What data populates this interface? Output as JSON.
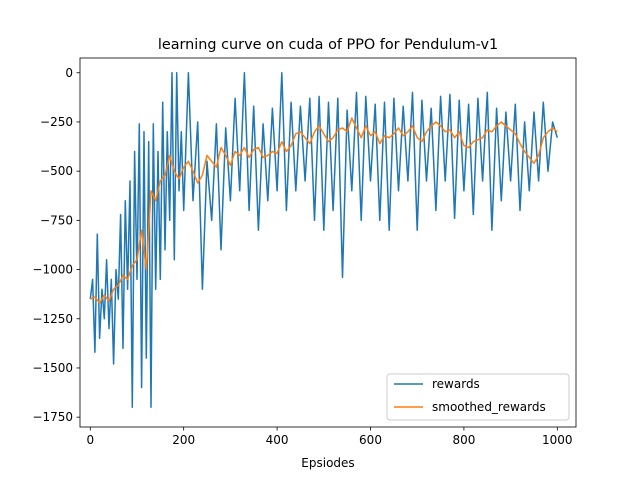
{
  "chart_data": {
    "type": "line",
    "title": "learning curve on cuda of PPO for Pendulum-v1",
    "xlabel": "Epsiodes",
    "ylabel": "",
    "xlim": [
      -22,
      1040
    ],
    "ylim": [
      -1800,
      75
    ],
    "x_ticks": [
      0,
      200,
      400,
      600,
      800,
      1000
    ],
    "y_ticks": [
      0,
      -250,
      -500,
      -750,
      -1000,
      -1250,
      -1500,
      -1750
    ],
    "grid": false,
    "legend_position": "lower right",
    "series": [
      {
        "name": "rewards",
        "color": "#1f77b4",
        "x": [
          0,
          5,
          10,
          15,
          20,
          25,
          30,
          35,
          40,
          45,
          50,
          55,
          60,
          65,
          70,
          75,
          80,
          85,
          90,
          95,
          100,
          105,
          110,
          115,
          120,
          125,
          130,
          135,
          140,
          145,
          150,
          155,
          160,
          165,
          170,
          175,
          180,
          185,
          190,
          195,
          200,
          210,
          220,
          230,
          240,
          250,
          260,
          270,
          280,
          290,
          300,
          310,
          320,
          330,
          340,
          350,
          360,
          370,
          380,
          390,
          400,
          410,
          420,
          430,
          440,
          450,
          460,
          470,
          480,
          490,
          500,
          510,
          520,
          530,
          540,
          550,
          560,
          570,
          580,
          590,
          600,
          610,
          620,
          630,
          640,
          650,
          660,
          670,
          680,
          690,
          700,
          710,
          720,
          730,
          740,
          750,
          760,
          770,
          780,
          790,
          800,
          810,
          820,
          830,
          840,
          850,
          860,
          870,
          880,
          890,
          900,
          910,
          920,
          930,
          940,
          950,
          960,
          970,
          980,
          990,
          1000
        ],
        "y": [
          -1150,
          -1050,
          -1420,
          -820,
          -1350,
          -1100,
          -1250,
          -950,
          -1300,
          -1050,
          -1480,
          -1000,
          -1150,
          -720,
          -1400,
          -650,
          -1100,
          -550,
          -1700,
          -400,
          -1050,
          -260,
          -1600,
          -300,
          -1450,
          -350,
          -1700,
          -260,
          -1100,
          -400,
          -1050,
          -150,
          -900,
          -300,
          -750,
          0,
          -950,
          0,
          -600,
          -300,
          -700,
          0,
          -650,
          -250,
          -1100,
          -450,
          -750,
          -260,
          -900,
          -280,
          -650,
          -130,
          -600,
          0,
          -700,
          -170,
          -800,
          -260,
          -650,
          -180,
          -600,
          0,
          -700,
          -150,
          -600,
          -170,
          -550,
          -130,
          -750,
          -120,
          -800,
          -150,
          -700,
          -130,
          -1040,
          -190,
          -600,
          -100,
          -750,
          -120,
          -550,
          -160,
          -750,
          -150,
          -800,
          -130,
          -600,
          -170,
          -550,
          -100,
          -800,
          -140,
          -550,
          -180,
          -700,
          -120,
          -550,
          -110,
          -740,
          -140,
          -600,
          -160,
          -720,
          -130,
          -550,
          -100,
          -800,
          -180,
          -650,
          -200,
          -550,
          -160,
          -700,
          -250,
          -600,
          -200,
          -550,
          -150,
          -500,
          -250,
          -330
        ]
      },
      {
        "name": "smoothed_rewards",
        "color": "#ff7f0e",
        "x": [
          0,
          10,
          20,
          30,
          40,
          50,
          60,
          70,
          80,
          90,
          100,
          110,
          120,
          130,
          140,
          150,
          160,
          170,
          180,
          190,
          200,
          210,
          220,
          230,
          240,
          250,
          260,
          270,
          280,
          290,
          300,
          310,
          320,
          330,
          340,
          350,
          360,
          370,
          380,
          390,
          400,
          410,
          420,
          430,
          440,
          450,
          460,
          470,
          480,
          490,
          500,
          510,
          520,
          530,
          540,
          550,
          560,
          570,
          580,
          590,
          600,
          610,
          620,
          630,
          640,
          650,
          660,
          670,
          680,
          690,
          700,
          710,
          720,
          730,
          740,
          750,
          760,
          770,
          780,
          790,
          800,
          810,
          820,
          830,
          840,
          850,
          860,
          870,
          880,
          890,
          900,
          910,
          920,
          930,
          940,
          950,
          960,
          970,
          980,
          990,
          1000
        ],
        "y": [
          -1150,
          -1140,
          -1170,
          -1130,
          -1160,
          -1100,
          -1080,
          -1030,
          -1050,
          -980,
          -950,
          -800,
          -1000,
          -600,
          -650,
          -550,
          -520,
          -420,
          -500,
          -540,
          -480,
          -450,
          -500,
          -560,
          -520,
          -420,
          -450,
          -480,
          -380,
          -420,
          -470,
          -400,
          -420,
          -380,
          -430,
          -390,
          -380,
          -430,
          -420,
          -400,
          -410,
          -350,
          -400,
          -370,
          -310,
          -300,
          -330,
          -360,
          -300,
          -270,
          -310,
          -350,
          -330,
          -290,
          -280,
          -300,
          -230,
          -280,
          -330,
          -270,
          -320,
          -300,
          -360,
          -320,
          -330,
          -310,
          -280,
          -320,
          -300,
          -270,
          -330,
          -350,
          -300,
          -270,
          -250,
          -270,
          -300,
          -290,
          -330,
          -300,
          -370,
          -380,
          -350,
          -340,
          -330,
          -290,
          -300,
          -270,
          -250,
          -270,
          -290,
          -310,
          -360,
          -400,
          -430,
          -460,
          -420,
          -330,
          -300,
          -280,
          -300
        ]
      }
    ]
  }
}
